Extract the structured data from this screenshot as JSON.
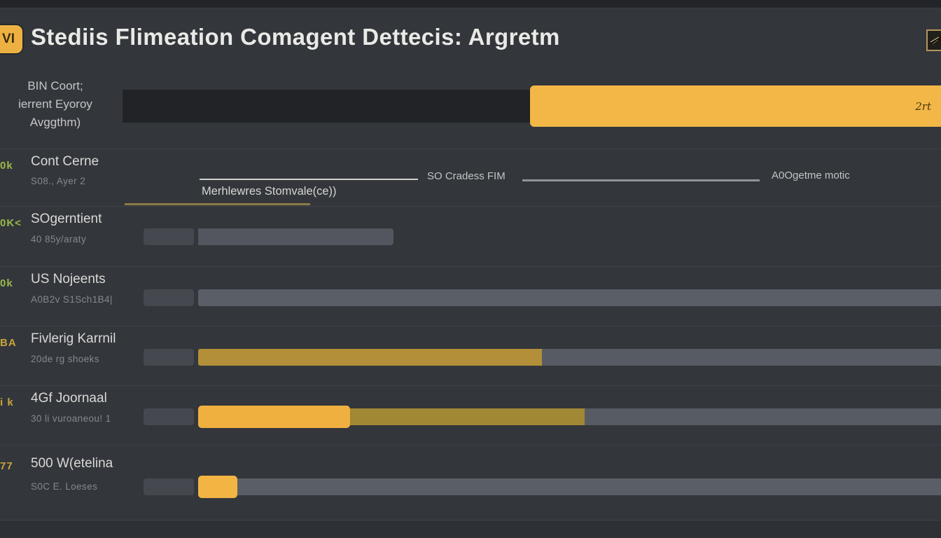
{
  "header": {
    "app_icon_text": "VI",
    "title": "Stediis Flimeation Comagent Dettecis: Argretm"
  },
  "hero": {
    "label_lines": [
      "BIN Coort;",
      "ierrent Eyoroy",
      "Avggthm)"
    ],
    "bar_value_label": "2rt"
  },
  "timeline": {
    "edge_mark": "0k",
    "title": "Cont Cerne",
    "subtitle": "S08., Ayer 2",
    "segment1_label": "SO Cradess FIM",
    "segment2_label": "A0Ogetme motic",
    "sub_label": "Merhlewres Stomvale(ce))"
  },
  "rows": [
    {
      "edge_mark": "0K<",
      "edge_mark_color": "#9ab94a",
      "title": "SOgerntient",
      "subtitle": "40 85y/araty",
      "segments": [
        {
          "color": "#53565e",
          "pct": 26.1,
          "rounded_end": true
        }
      ]
    },
    {
      "edge_mark": "0k",
      "edge_mark_color": "#9ab94a",
      "title": "US Nojeents",
      "subtitle": "A0B2v S1Sch1B4|",
      "segments": [
        {
          "color": "#5a5e66",
          "pct": 100
        }
      ]
    },
    {
      "edge_mark": "BA",
      "edge_mark_color": "#c9a43c",
      "title": "Fivlerig Karrnil",
      "subtitle": "20de rg shoeks",
      "segments": [
        {
          "color": "#b28f38",
          "pct": 45.9
        },
        {
          "color": "#575b63",
          "pct": 54.1
        }
      ]
    },
    {
      "edge_mark": "i k",
      "edge_mark_color": "#c9a43c",
      "title": "4Gf Joornaal",
      "subtitle": "30 li vuroaneou! 1",
      "segments": [
        {
          "color": "#f0b040",
          "pct": 20.3,
          "tall": true
        },
        {
          "color": "#a18834",
          "pct": 31.3
        },
        {
          "color": "#575b63",
          "pct": 48.4
        }
      ]
    },
    {
      "edge_mark": "77",
      "edge_mark_color": "#c9a43c",
      "title": "500 W(etelina",
      "subtitle": "S0C E. Loeses",
      "segments": [
        {
          "color": "#f2b544",
          "pct": 5.2,
          "tall": true
        },
        {
          "color": "#5a5e66",
          "pct": 94.8
        }
      ]
    }
  ],
  "colors": {
    "accent_yellow": "#f2b746",
    "icon_yellow": "#edb143",
    "dark_bar": "#212327",
    "green_mark": "#9ab94a",
    "yellow_mark": "#c9a43c",
    "background": "#33363b"
  }
}
